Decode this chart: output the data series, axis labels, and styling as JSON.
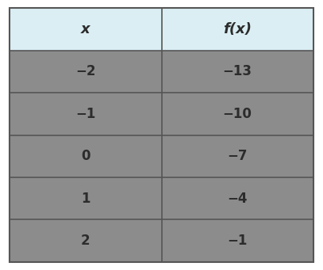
{
  "headers": [
    "x",
    "f(x)"
  ],
  "rows": [
    [
      "−2",
      "−13"
    ],
    [
      "−1",
      "−10"
    ],
    [
      "0",
      "−7"
    ],
    [
      "1",
      "−4"
    ],
    [
      "2",
      "−1"
    ]
  ],
  "header_bg": "#daeef3",
  "row_bg": "#8c8c8c",
  "grid_color": "#555555",
  "outer_border_color": "#555555",
  "header_text_color": "#2c2c2c",
  "row_text_color": "#2c2c2c",
  "fig_bg": "#ffffff",
  "fig_width": 4.07,
  "fig_height": 3.41,
  "dpi": 100
}
